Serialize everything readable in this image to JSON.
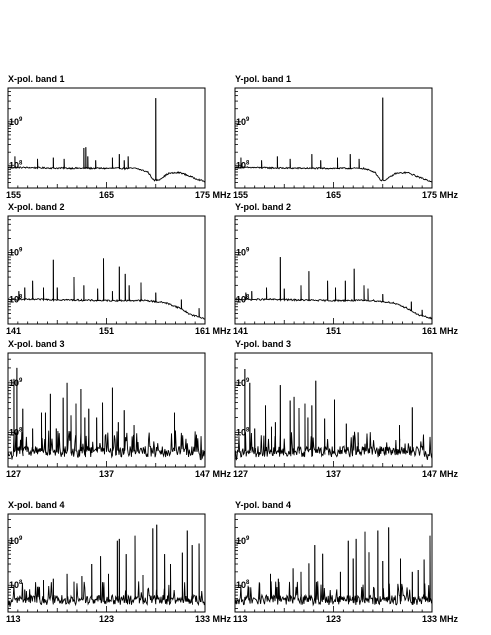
{
  "figure": {
    "panels": [
      {
        "title": "X-pol. band 1",
        "xticks": [
          "155",
          "165",
          "175 MHz"
        ],
        "yticks": [
          "10^9",
          "10^8"
        ]
      },
      {
        "title": "Y-pol. band 1",
        "xticks": [
          "155",
          "165",
          "175 MHz"
        ],
        "yticks": [
          "10^9",
          "10^8"
        ]
      },
      {
        "title": "X-pol. band 2",
        "xticks": [
          "141",
          "151",
          "161 MHz"
        ],
        "yticks": [
          "10^9",
          "10^8"
        ]
      },
      {
        "title": "Y-pol. band 2",
        "xticks": [
          "141",
          "151",
          "161 MHz"
        ],
        "yticks": [
          "10^9",
          "10^8"
        ]
      },
      {
        "title": "X-pol. band 3",
        "xticks": [
          "127",
          "137",
          "147 MHz"
        ],
        "yticks": [
          "10^9",
          "10^8"
        ]
      },
      {
        "title": "Y-pol. band 3",
        "xticks": [
          "127",
          "137",
          "147 MHz"
        ],
        "yticks": [
          "10^9",
          "10^8"
        ]
      },
      {
        "title": "X-pol. band 4",
        "xticks": [
          "113",
          "123",
          "133 MHz"
        ],
        "yticks": [
          "10^9",
          "10^8"
        ]
      },
      {
        "title": "Y-pol. band 4",
        "xticks": [
          "113",
          "123",
          "133 MHz"
        ],
        "yticks": [
          "10^9",
          "10^8"
        ]
      }
    ]
  },
  "chart_data": [
    {
      "type": "line",
      "title": "X-pol. band 1",
      "xlim": [
        155,
        175
      ],
      "xunit": "MHz",
      "yscale": "log",
      "ylim": [
        30000000.0,
        6000000000.0
      ],
      "baseline": [
        [
          155,
          90000000.0
        ],
        [
          160,
          86000000.0
        ],
        [
          165,
          85000000.0
        ],
        [
          168,
          85000000.0
        ],
        [
          169.2,
          70000000.0
        ],
        [
          169.8,
          45000000.0
        ],
        [
          170.3,
          46000000.0
        ],
        [
          171.3,
          65000000.0
        ],
        [
          172.5,
          68000000.0
        ],
        [
          174,
          50000000.0
        ],
        [
          175,
          42000000.0
        ]
      ],
      "spikes": [
        [
          155.7,
          160000000.0
        ],
        [
          158,
          140000000.0
        ],
        [
          159.6,
          150000000.0
        ],
        [
          160.7,
          140000000.0
        ],
        [
          162.7,
          250000000.0
        ],
        [
          162.9,
          260000000.0
        ],
        [
          163.1,
          160000000.0
        ],
        [
          163.9,
          130000000.0
        ],
        [
          165.6,
          150000000.0
        ],
        [
          166.3,
          180000000.0
        ],
        [
          166.8,
          130000000.0
        ],
        [
          167.2,
          160000000.0
        ],
        [
          170.0,
          3500000000.0
        ]
      ]
    },
    {
      "type": "line",
      "title": "Y-pol. band 1",
      "xlim": [
        155,
        175
      ],
      "xunit": "MHz",
      "yscale": "log",
      "ylim": [
        30000000.0,
        6000000000.0
      ],
      "baseline": [
        [
          155,
          90000000.0
        ],
        [
          160,
          86000000.0
        ],
        [
          165,
          85000000.0
        ],
        [
          168,
          85000000.0
        ],
        [
          169.2,
          70000000.0
        ],
        [
          169.8,
          45000000.0
        ],
        [
          170.3,
          46000000.0
        ],
        [
          171.3,
          65000000.0
        ],
        [
          172.5,
          68000000.0
        ],
        [
          174,
          50000000.0
        ],
        [
          175,
          42000000.0
        ]
      ],
      "spikes": [
        [
          155.6,
          150000000.0
        ],
        [
          157.7,
          130000000.0
        ],
        [
          159.3,
          160000000.0
        ],
        [
          160.6,
          140000000.0
        ],
        [
          162.8,
          180000000.0
        ],
        [
          163.7,
          130000000.0
        ],
        [
          165.4,
          150000000.0
        ],
        [
          166.7,
          180000000.0
        ],
        [
          167.6,
          140000000.0
        ],
        [
          170.0,
          3600000000.0
        ]
      ]
    },
    {
      "type": "line",
      "title": "X-pol. band 2",
      "xlim": [
        141,
        161
      ],
      "xunit": "MHz",
      "yscale": "log",
      "ylim": [
        30000000.0,
        6000000000.0
      ],
      "baseline": [
        [
          141,
          100000000.0
        ],
        [
          145,
          100000000.0
        ],
        [
          150,
          95000000.0
        ],
        [
          155,
          95000000.0
        ],
        [
          157,
          85000000.0
        ],
        [
          158.5,
          65000000.0
        ],
        [
          159.5,
          48000000.0
        ],
        [
          161,
          39000000.0
        ]
      ],
      "spikes": [
        [
          142.1,
          150000000.0
        ],
        [
          142.7,
          180000000.0
        ],
        [
          143.5,
          250000000.0
        ],
        [
          144.6,
          180000000.0
        ],
        [
          145.6,
          700000000.0
        ],
        [
          146.0,
          180000000.0
        ],
        [
          147.7,
          300000000.0
        ],
        [
          148.7,
          200000000.0
        ],
        [
          150.1,
          170000000.0
        ],
        [
          150.7,
          750000000.0
        ],
        [
          151.6,
          150000000.0
        ],
        [
          152.3,
          500000000.0
        ],
        [
          152.9,
          350000000.0
        ],
        [
          153.3,
          200000000.0
        ],
        [
          154.5,
          230000000.0
        ],
        [
          156.0,
          140000000.0
        ],
        [
          158.6,
          100000000.0
        ],
        [
          160.4,
          65000000.0
        ]
      ]
    },
    {
      "type": "line",
      "title": "Y-pol. band 2",
      "xlim": [
        141,
        161
      ],
      "xunit": "MHz",
      "yscale": "log",
      "ylim": [
        30000000.0,
        6000000000.0
      ],
      "baseline": [
        [
          141,
          100000000.0
        ],
        [
          145,
          100000000.0
        ],
        [
          150,
          95000000.0
        ],
        [
          155,
          95000000.0
        ],
        [
          157,
          85000000.0
        ],
        [
          158.5,
          65000000.0
        ],
        [
          159.5,
          48000000.0
        ],
        [
          161,
          39000000.0
        ]
      ],
      "spikes": [
        [
          142.1,
          140000000.0
        ],
        [
          142.7,
          150000000.0
        ],
        [
          144.2,
          180000000.0
        ],
        [
          145.6,
          800000000.0
        ],
        [
          146.0,
          170000000.0
        ],
        [
          147.7,
          200000000.0
        ],
        [
          148.5,
          400000000.0
        ],
        [
          150.4,
          250000000.0
        ],
        [
          151.2,
          180000000.0
        ],
        [
          152.2,
          250000000.0
        ],
        [
          153.1,
          450000000.0
        ],
        [
          154.1,
          200000000.0
        ],
        [
          154.5,
          170000000.0
        ],
        [
          156.0,
          130000000.0
        ],
        [
          158.9,
          90000000.0
        ],
        [
          160.0,
          60000000.0
        ]
      ]
    },
    {
      "type": "line",
      "title": "X-pol. band 3",
      "xlim": [
        127,
        147
      ],
      "xunit": "MHz",
      "yscale": "log",
      "ylim": [
        20000000.0,
        4000000000.0
      ],
      "noise_floor": 42000000.0,
      "spikes": [
        [
          127.6,
          1200000000.0
        ],
        [
          127.9,
          2000000000.0
        ],
        [
          128.5,
          300000000.0
        ],
        [
          129.5,
          120000000.0
        ],
        [
          130.4,
          250000000.0
        ],
        [
          130.8,
          250000000.0
        ],
        [
          131.3,
          600000000.0
        ],
        [
          131.9,
          120000000.0
        ],
        [
          132.6,
          500000000.0
        ],
        [
          133.0,
          1000000000.0
        ],
        [
          133.4,
          220000000.0
        ],
        [
          133.9,
          380000000.0
        ],
        [
          134.4,
          750000000.0
        ],
        [
          134.8,
          200000000.0
        ],
        [
          135.2,
          300000000.0
        ],
        [
          136.0,
          200000000.0
        ],
        [
          136.6,
          400000000.0
        ],
        [
          137.6,
          800000000.0
        ],
        [
          138.2,
          160000000.0
        ],
        [
          138.8,
          280000000.0
        ],
        [
          139.8,
          140000000.0
        ],
        [
          143.9,
          250000000.0
        ]
      ]
    },
    {
      "type": "line",
      "title": "Y-pol. band 3",
      "xlim": [
        127,
        147
      ],
      "xunit": "MHz",
      "yscale": "log",
      "ylim": [
        20000000.0,
        4000000000.0
      ],
      "noise_floor": 42000000.0,
      "spikes": [
        [
          128.0,
          1900000000.0
        ],
        [
          128.5,
          1000000000.0
        ],
        [
          129.0,
          120000000.0
        ],
        [
          130.1,
          350000000.0
        ],
        [
          130.7,
          130000000.0
        ],
        [
          131.1,
          160000000.0
        ],
        [
          131.6,
          900000000.0
        ],
        [
          132.6,
          440000000.0
        ],
        [
          133.0,
          520000000.0
        ],
        [
          133.5,
          310000000.0
        ],
        [
          134.1,
          380000000.0
        ],
        [
          134.4,
          200000000.0
        ],
        [
          134.8,
          350000000.0
        ],
        [
          135.2,
          1100000000.0
        ],
        [
          136.1,
          190000000.0
        ],
        [
          137.1,
          460000000.0
        ],
        [
          138.3,
          150000000.0
        ],
        [
          139.5,
          100000000.0
        ],
        [
          143.7,
          140000000.0
        ],
        [
          145.0,
          320000000.0
        ]
      ]
    },
    {
      "type": "line",
      "title": "X-pol. band 4",
      "xlim": [
        113,
        133
      ],
      "xunit": "MHz",
      "yscale": "log",
      "ylim": [
        25000000.0,
        4000000000.0
      ],
      "noise_floor": 48000000.0,
      "spikes": [
        [
          114.7,
          80000000.0
        ],
        [
          116.2,
          90000000.0
        ],
        [
          116.6,
          130000000.0
        ],
        [
          117.6,
          140000000.0
        ],
        [
          119.0,
          180000000.0
        ],
        [
          119.7,
          120000000.0
        ],
        [
          120.5,
          160000000.0
        ],
        [
          121.5,
          300000000.0
        ],
        [
          122.4,
          450000000.0
        ],
        [
          123.2,
          180000000.0
        ],
        [
          124.1,
          1000000000.0
        ],
        [
          124.3,
          1100000000.0
        ],
        [
          125.0,
          500000000.0
        ],
        [
          125.9,
          1300000000.0
        ],
        [
          126.7,
          170000000.0
        ],
        [
          127.7,
          1900000000.0
        ],
        [
          128.1,
          2300000000.0
        ],
        [
          128.9,
          500000000.0
        ],
        [
          129.5,
          300000000.0
        ],
        [
          130.7,
          540000000.0
        ],
        [
          131.2,
          1700000000.0
        ],
        [
          131.7,
          800000000.0
        ],
        [
          132.4,
          870000000.0
        ]
      ]
    },
    {
      "type": "line",
      "title": "Y-pol. band 4",
      "xlim": [
        113,
        133
      ],
      "xunit": "MHz",
      "yscale": "log",
      "ylim": [
        25000000.0,
        4000000000.0
      ],
      "noise_floor": 48000000.0,
      "spikes": [
        [
          114.4,
          90000000.0
        ],
        [
          115.5,
          110000000.0
        ],
        [
          116.6,
          180000000.0
        ],
        [
          117.4,
          140000000.0
        ],
        [
          118.9,
          240000000.0
        ],
        [
          119.7,
          200000000.0
        ],
        [
          120.5,
          310000000.0
        ],
        [
          121.1,
          800000000.0
        ],
        [
          121.9,
          510000000.0
        ],
        [
          123.7,
          200000000.0
        ],
        [
          124.5,
          1000000000.0
        ],
        [
          125.0,
          400000000.0
        ],
        [
          125.3,
          1100000000.0
        ],
        [
          126.2,
          1600000000.0
        ],
        [
          126.6,
          550000000.0
        ],
        [
          127.5,
          1700000000.0
        ],
        [
          128.0,
          350000000.0
        ],
        [
          128.6,
          2000000000.0
        ],
        [
          129.8,
          400000000.0
        ],
        [
          131.0,
          200000000.0
        ],
        [
          131.6,
          220000000.0
        ],
        [
          132.2,
          380000000.0
        ],
        [
          132.8,
          1300000000.0
        ]
      ]
    }
  ]
}
